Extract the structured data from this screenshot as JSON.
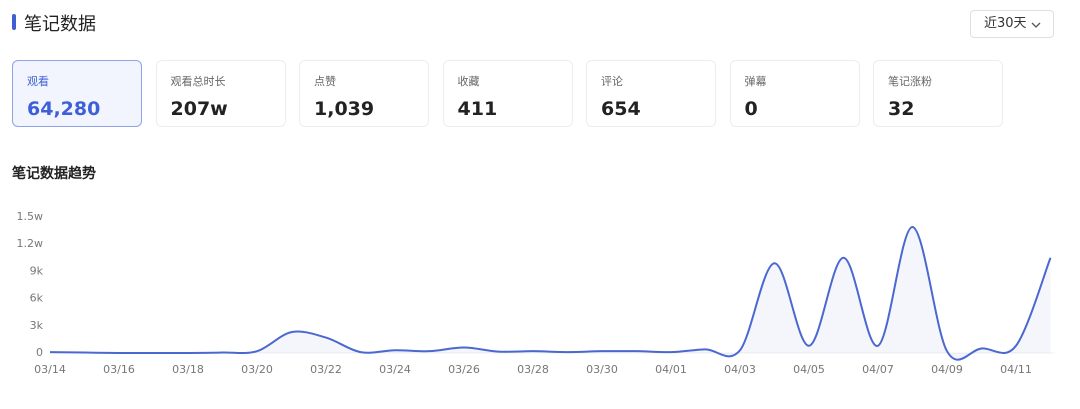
{
  "header": {
    "title": "笔记数据",
    "range": "近30天"
  },
  "cards": [
    {
      "label": "观看",
      "value": "64,280"
    },
    {
      "label": "观看总时长",
      "value": "207w"
    },
    {
      "label": "点赞",
      "value": "1,039"
    },
    {
      "label": "收藏",
      "value": "411"
    },
    {
      "label": "评论",
      "value": "654"
    },
    {
      "label": "弹幕",
      "value": "0"
    },
    {
      "label": "笔记涨粉",
      "value": "32"
    }
  ],
  "chart_data": {
    "type": "line",
    "title": "笔记数据趋势",
    "categories": [
      "03/14",
      null,
      "03/16",
      null,
      "03/18",
      null,
      "03/20",
      null,
      "03/22",
      null,
      "03/24",
      null,
      "03/26",
      null,
      "03/28",
      null,
      "03/30",
      null,
      "04/01",
      null,
      "04/03",
      null,
      "04/05",
      null,
      "04/07",
      null,
      "04/09",
      null,
      "04/11",
      null
    ],
    "series": [
      {
        "color": "#4a68d0",
        "values": [
          100,
          50,
          0,
          0,
          0,
          50,
          200,
          2300,
          1700,
          100,
          300,
          200,
          600,
          150,
          200,
          100,
          200,
          200,
          100,
          400,
          300,
          9900,
          800,
          10500,
          800,
          13900,
          200,
          500,
          800,
          10500
        ]
      }
    ],
    "ylim": [
      0,
      15000
    ],
    "yticks": [
      0,
      {
        "value": 3000,
        "label": "3k"
      },
      {
        "value": 6000,
        "label": "6k"
      },
      {
        "value": 9000,
        "label": "9k"
      },
      {
        "value": 12000,
        "label": "1.2w"
      },
      {
        "value": 15000,
        "label": "1.5w"
      }
    ]
  }
}
